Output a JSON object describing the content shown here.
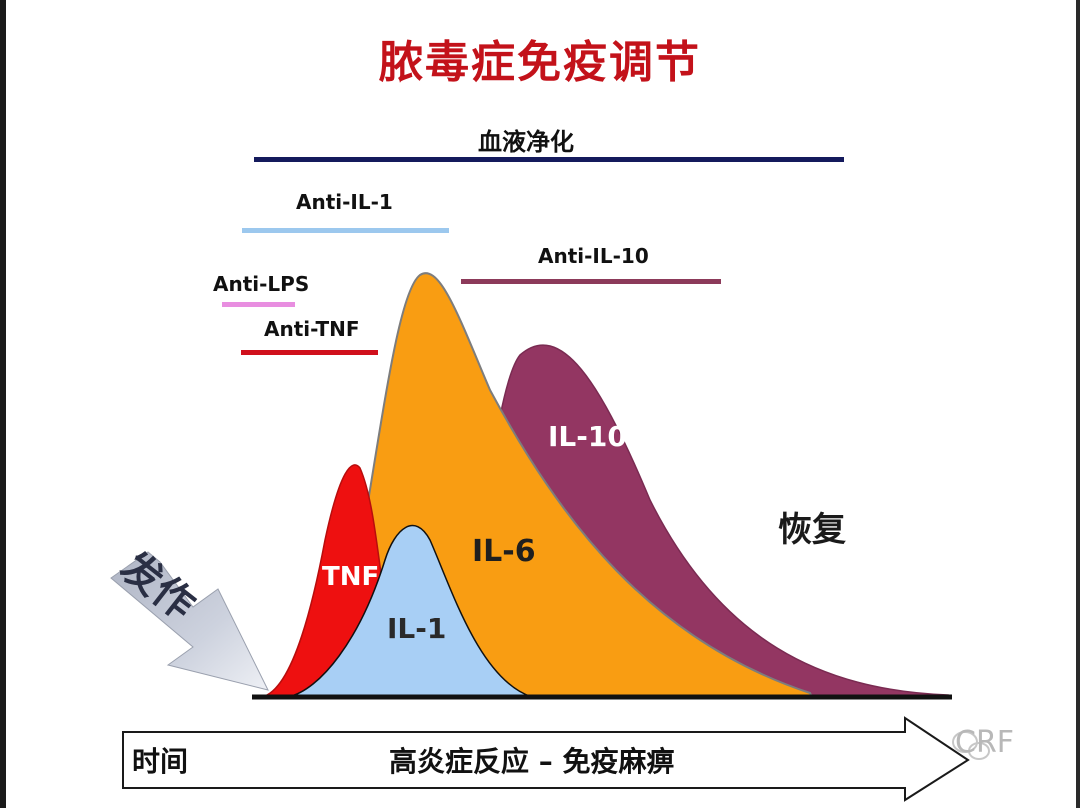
{
  "title": "脓毒症免疫调节",
  "therapies": {
    "blood_purification": "血液净化",
    "anti_il1": "Anti-IL-1",
    "anti_lps": "Anti-LPS",
    "anti_tnf": "Anti-TNF",
    "anti_il10": "Anti-IL-10"
  },
  "curves": {
    "tnf": "TNF",
    "il1": "IL-1",
    "il6": "IL-6",
    "il10": "IL-10"
  },
  "onset_label": "发作",
  "recovery_label": "恢复",
  "axis": {
    "left_label": "时间",
    "center_label": "高炎症反应 – 免疫麻痹"
  },
  "watermark": "CRF",
  "colors": {
    "title": "#c3121a",
    "blood_purification_bar": "#141a5c",
    "anti_il1_bar": "#9cc8ee",
    "anti_lps_bar": "#e88ee0",
    "anti_tnf_bar": "#d0101c",
    "anti_il10_bar": "#8c3a5a",
    "tnf_fill": "#ee1010",
    "il1_fill": "#a8cff5",
    "il6_fill": "#f99d12",
    "il10_fill": "#933662"
  }
}
